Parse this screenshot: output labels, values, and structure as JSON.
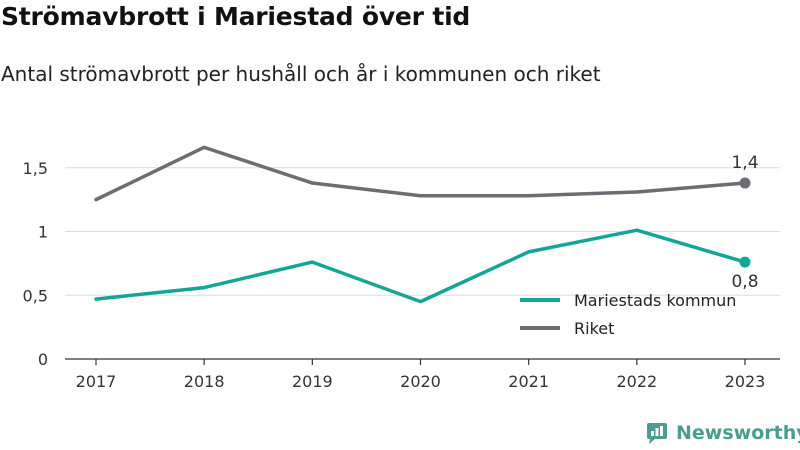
{
  "title": "Strömavbrott i Mariestad över tid",
  "subtitle": "Antal strömavbrott per hushåll och år i kommunen och riket",
  "brand": {
    "name": "Newsworthy",
    "color": "#4a9d8f",
    "icon": "newsworthy-logo-icon"
  },
  "chart_data": {
    "type": "line",
    "x": [
      "2017",
      "2018",
      "2019",
      "2020",
      "2021",
      "2022",
      "2023"
    ],
    "yticks": [
      "0",
      "0,5",
      "1",
      "1,5"
    ],
    "ylim": [
      0,
      1.7
    ],
    "grid": true,
    "legend_position": "bottom-right",
    "series": [
      {
        "name": "Mariestads kommun",
        "color": "#14a597",
        "values": [
          0.47,
          0.56,
          0.76,
          0.45,
          0.84,
          1.01,
          0.76
        ],
        "end_label": "0,8"
      },
      {
        "name": "Riket",
        "color": "#6d6c72",
        "values": [
          1.25,
          1.66,
          1.38,
          1.28,
          1.28,
          1.31,
          1.38
        ],
        "end_label": "1,4"
      }
    ]
  }
}
